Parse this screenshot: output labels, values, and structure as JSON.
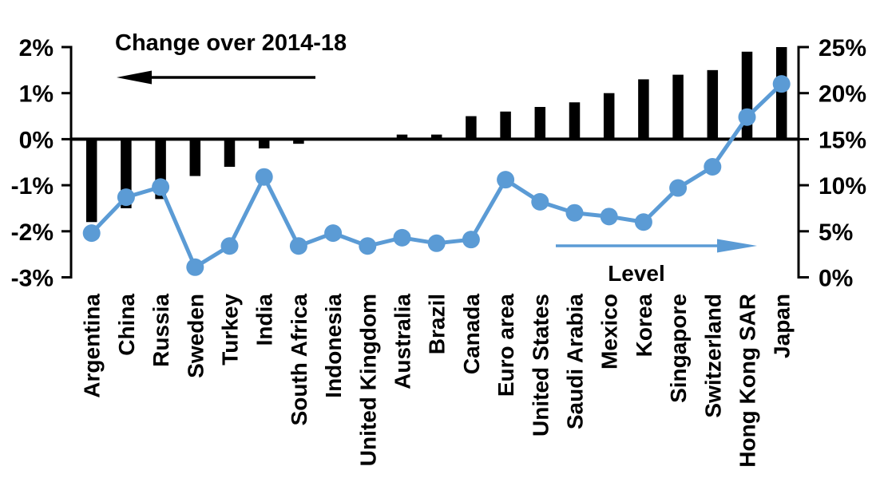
{
  "chart_data": {
    "type": "combo-bar-line",
    "categories": [
      "Argentina",
      "China",
      "Russia",
      "Sweden",
      "Turkey",
      "India",
      "South Africa",
      "Indonesia",
      "United Kingdom",
      "Australia",
      "Brazil",
      "Canada",
      "Euro area",
      "United States",
      "Saudi Arabia",
      "Mexico",
      "Korea",
      "Singapore",
      "Switzerland",
      "Hong Kong SAR",
      "Japan"
    ],
    "series": [
      {
        "name": "Change over 2014-18",
        "type": "bar",
        "axis": "left",
        "unit": "%",
        "values": [
          -1.8,
          -1.5,
          -1.3,
          -0.8,
          -0.6,
          -0.2,
          -0.1,
          0.0,
          0.0,
          0.1,
          0.1,
          0.5,
          0.6,
          0.7,
          0.8,
          1.0,
          1.3,
          1.4,
          1.5,
          1.9,
          2.0
        ]
      },
      {
        "name": "Level",
        "type": "line",
        "axis": "right",
        "unit": "%",
        "values": [
          4.8,
          8.7,
          9.8,
          1.1,
          3.4,
          10.9,
          3.4,
          4.8,
          3.4,
          4.3,
          3.7,
          4.1,
          10.6,
          8.2,
          7.0,
          6.6,
          6.0,
          9.7,
          12.0,
          17.4,
          21.0
        ]
      }
    ],
    "left_axis": {
      "min": -3,
      "max": 2,
      "step": 1,
      "tick_labels": [
        "2%",
        "1%",
        "0%",
        "-1%",
        "-2%",
        "-3%"
      ]
    },
    "right_axis": {
      "min": 0,
      "max": 25,
      "step": 5,
      "tick_labels": [
        "25%",
        "20%",
        "15%",
        "10%",
        "5%",
        "0%"
      ]
    },
    "annotations": {
      "bar_series_label": "Change over 2014-18",
      "bar_arrow_direction": "left",
      "line_series_label": "Level",
      "line_arrow_direction": "right"
    },
    "grid": false,
    "legend_position": "none"
  },
  "colors": {
    "bar": "#000000",
    "line": "#5b9bd5",
    "axis": "#000000",
    "background": "#ffffff"
  }
}
